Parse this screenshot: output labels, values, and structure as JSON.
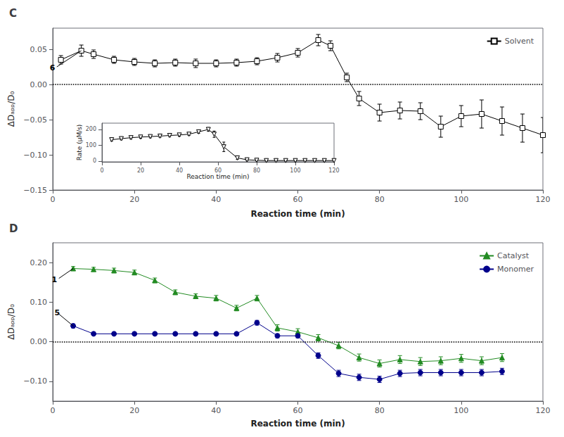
{
  "chart_data": [
    {
      "type": "line",
      "title": "C",
      "xlabel": "Reaction time (min)",
      "ylabel": "ΔDₐₚₚ/D₀",
      "xlim": [
        0,
        120
      ],
      "ylim": [
        -0.15,
        0.08
      ],
      "xticks": [
        0,
        20,
        40,
        60,
        80,
        100,
        120
      ],
      "yticks": [
        {
          "value": -0.15,
          "label": "−0.15"
        },
        {
          "value": -0.1,
          "label": "−0.10"
        },
        {
          "value": -0.05,
          "label": "−0.05"
        },
        {
          "value": 0,
          "label": "0.00"
        },
        {
          "value": 0.05,
          "label": "0.05"
        }
      ],
      "grid": false,
      "legend": "upper right",
      "series": [
        {
          "name": "Solvent",
          "color": "#000000",
          "marker": "open_square",
          "x": [
            2,
            7,
            10,
            15,
            20,
            25,
            30,
            35,
            40,
            45,
            50,
            55,
            60,
            65,
            68,
            72,
            75,
            80,
            85,
            90,
            95,
            100,
            105,
            110,
            115,
            120
          ],
          "values": [
            0.035,
            0.048,
            0.043,
            0.035,
            0.032,
            0.03,
            0.031,
            0.03,
            0.03,
            0.031,
            0.033,
            0.038,
            0.045,
            0.063,
            0.055,
            0.01,
            -0.02,
            -0.04,
            -0.037,
            -0.038,
            -0.06,
            -0.045,
            -0.042,
            -0.052,
            -0.062,
            -0.072
          ],
          "errors": [
            0.006,
            0.008,
            0.006,
            0.005,
            0.005,
            0.005,
            0.005,
            0.006,
            0.005,
            0.005,
            0.005,
            0.006,
            0.006,
            0.008,
            0.007,
            0.006,
            0.01,
            0.012,
            0.012,
            0.012,
            0.015,
            0.015,
            0.02,
            0.02,
            0.02,
            0.025
          ]
        }
      ],
      "hlines": [
        {
          "y": 0,
          "line_style": "dotted"
        }
      ],
      "annotations": [
        {
          "text": "6",
          "x": 7,
          "y": 0.048,
          "text_x": 1,
          "text_y": 0.025
        }
      ],
      "inset": {
        "type": "line",
        "xlabel": "Reaction time (min)",
        "ylabel": "Rate (μM/s)",
        "xlim": [
          0,
          120
        ],
        "ylim": [
          -5,
          240
        ],
        "xticks": [
          0,
          20,
          40,
          60,
          80,
          100,
          120
        ],
        "yticks": [
          0,
          100,
          200
        ],
        "grid": false,
        "series": [
          {
            "color": "#000000",
            "marker": "open_triangle_down",
            "x": [
              5,
              10,
              15,
              20,
              25,
              30,
              35,
              40,
              45,
              50,
              55,
              58,
              63,
              70,
              75,
              80,
              85,
              90,
              95,
              100,
              105,
              110,
              115,
              120
            ],
            "values": [
              135,
              142,
              148,
              152,
              155,
              158,
              162,
              165,
              170,
              185,
              200,
              170,
              90,
              20,
              8,
              5,
              3,
              3,
              3,
              3,
              3,
              3,
              3,
              3
            ],
            "errors": [
              8,
              8,
              8,
              8,
              8,
              8,
              8,
              8,
              8,
              10,
              12,
              20,
              30,
              10,
              5,
              3,
              3,
              3,
              3,
              3,
              3,
              3,
              3,
              3
            ]
          }
        ]
      }
    },
    {
      "type": "line",
      "title": "D",
      "xlabel": "Reaction time (min)",
      "ylabel": "ΔDₐₚₚ/D₀",
      "xlim": [
        0,
        120
      ],
      "ylim": [
        -0.15,
        0.25
      ],
      "xticks": [
        0,
        20,
        40,
        60,
        80,
        100,
        120
      ],
      "yticks": [
        {
          "value": -0.1,
          "label": "−0.10"
        },
        {
          "value": 0,
          "label": "0.00"
        },
        {
          "value": 0.1,
          "label": "0.10"
        },
        {
          "value": 0.2,
          "label": "0.20"
        }
      ],
      "grid": false,
      "legend": "upper right",
      "series": [
        {
          "name": "Catalyst",
          "color": "#228B22",
          "marker": "triangle",
          "x": [
            5,
            10,
            15,
            20,
            25,
            30,
            35,
            40,
            45,
            50,
            55,
            60,
            65,
            70,
            75,
            80,
            85,
            90,
            95,
            100,
            105,
            110
          ],
          "values": [
            0.185,
            0.183,
            0.18,
            0.175,
            0.155,
            0.125,
            0.115,
            0.11,
            0.085,
            0.11,
            0.035,
            0.025,
            0.01,
            -0.01,
            -0.04,
            -0.055,
            -0.045,
            -0.05,
            -0.048,
            -0.042,
            -0.048,
            -0.04
          ],
          "errors": [
            0.005,
            0.005,
            0.006,
            0.006,
            0.006,
            0.006,
            0.006,
            0.007,
            0.007,
            0.007,
            0.008,
            0.008,
            0.008,
            0.008,
            0.009,
            0.009,
            0.01,
            0.01,
            0.01,
            0.01,
            0.01,
            0.01
          ]
        },
        {
          "name": "Monomer",
          "color": "#00008B",
          "marker": "circle",
          "x": [
            5,
            10,
            15,
            20,
            25,
            30,
            35,
            40,
            45,
            50,
            55,
            60,
            65,
            70,
            75,
            80,
            85,
            90,
            95,
            100,
            105,
            110
          ],
          "values": [
            0.04,
            0.02,
            0.02,
            0.02,
            0.02,
            0.02,
            0.02,
            0.02,
            0.02,
            0.048,
            0.015,
            0.015,
            -0.035,
            -0.08,
            -0.09,
            -0.095,
            -0.08,
            -0.078,
            -0.078,
            -0.078,
            -0.078,
            -0.075
          ],
          "errors": [
            0.005,
            0.004,
            0.004,
            0.004,
            0.004,
            0.004,
            0.004,
            0.004,
            0.004,
            0.006,
            0.005,
            0.005,
            0.007,
            0.008,
            0.008,
            0.008,
            0.008,
            0.008,
            0.008,
            0.008,
            0.008,
            0.008
          ]
        }
      ],
      "hlines": [
        {
          "y": 0,
          "line_style": "dotted"
        }
      ],
      "annotations": [
        {
          "text": "1",
          "x": 5,
          "y": 0.185,
          "text_x": 1.5,
          "text_y": 0.16
        },
        {
          "text": "5",
          "x": 5,
          "y": 0.04,
          "text_x": 1.5,
          "text_y": 0.07
        }
      ]
    }
  ]
}
